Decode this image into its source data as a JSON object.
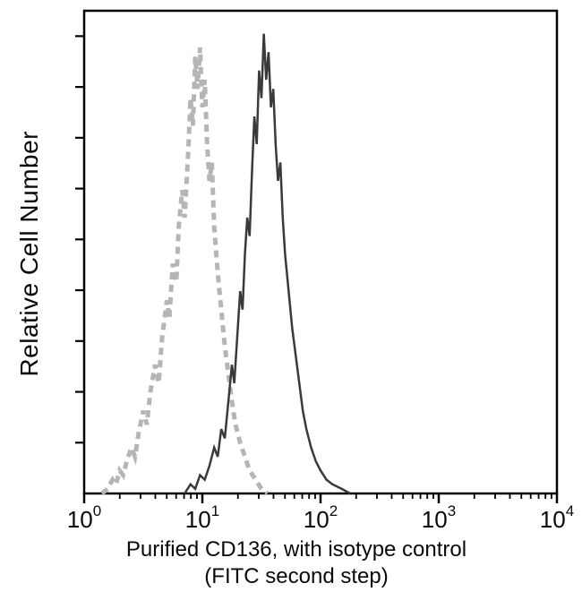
{
  "figure": {
    "y_axis_label": "Relative Cell Number",
    "caption_line1": "Purified CD136, with isotype control",
    "caption_line2": "(FITC second step)"
  },
  "chart_data": {
    "type": "line",
    "subtype": "flow-cytometry-histogram",
    "title": "",
    "xlabel": "Purified CD136, with isotype control (FITC second step)",
    "ylabel": "Relative Cell Number",
    "x_scale": "log10",
    "xlim_log10": [
      0,
      4
    ],
    "ylim": [
      0,
      105
    ],
    "grid": false,
    "legend": "none",
    "frame_color": "#000000",
    "x_ticks": [
      {
        "label": "10^0",
        "mantissa": "10",
        "exponent": "0",
        "log10": 0
      },
      {
        "label": "10^1",
        "mantissa": "10",
        "exponent": "1",
        "log10": 1
      },
      {
        "label": "10^2",
        "mantissa": "10",
        "exponent": "2",
        "log10": 2
      },
      {
        "label": "10^3",
        "mantissa": "10",
        "exponent": "3",
        "log10": 3
      },
      {
        "label": "10^4",
        "mantissa": "10",
        "exponent": "4",
        "log10": 4
      }
    ],
    "series": [
      {
        "name": "isotype control",
        "line_style": "dashed",
        "color": "#b5b5b5",
        "stroke_width": 5,
        "dash_pattern": "8 6",
        "points_log10x_y": [
          [
            0.15,
            0
          ],
          [
            0.2,
            1
          ],
          [
            0.24,
            3
          ],
          [
            0.27,
            2
          ],
          [
            0.3,
            5
          ],
          [
            0.33,
            4
          ],
          [
            0.36,
            7
          ],
          [
            0.4,
            10
          ],
          [
            0.43,
            8
          ],
          [
            0.46,
            13
          ],
          [
            0.5,
            18
          ],
          [
            0.53,
            15
          ],
          [
            0.56,
            22
          ],
          [
            0.6,
            28
          ],
          [
            0.63,
            24
          ],
          [
            0.66,
            34
          ],
          [
            0.7,
            42
          ],
          [
            0.72,
            38
          ],
          [
            0.75,
            50
          ],
          [
            0.78,
            46
          ],
          [
            0.8,
            58
          ],
          [
            0.83,
            66
          ],
          [
            0.85,
            60
          ],
          [
            0.88,
            74
          ],
          [
            0.9,
            86
          ],
          [
            0.92,
            80
          ],
          [
            0.94,
            95
          ],
          [
            0.96,
            88
          ],
          [
            0.98,
            97
          ],
          [
            1.0,
            84
          ],
          [
            1.02,
            90
          ],
          [
            1.04,
            76
          ],
          [
            1.06,
            68
          ],
          [
            1.08,
            72
          ],
          [
            1.1,
            58
          ],
          [
            1.13,
            48
          ],
          [
            1.16,
            40
          ],
          [
            1.19,
            32
          ],
          [
            1.22,
            26
          ],
          [
            1.25,
            20
          ],
          [
            1.28,
            15
          ],
          [
            1.32,
            11
          ],
          [
            1.36,
            8
          ],
          [
            1.4,
            5
          ],
          [
            1.45,
            3
          ],
          [
            1.5,
            1
          ],
          [
            1.55,
            0
          ]
        ]
      },
      {
        "name": "Purified CD136",
        "line_style": "solid",
        "color": "#3a3a3a",
        "stroke_width": 2.5,
        "dash_pattern": "",
        "points_log10x_y": [
          [
            0.85,
            0
          ],
          [
            0.9,
            2
          ],
          [
            0.94,
            1
          ],
          [
            0.98,
            4
          ],
          [
            1.02,
            3
          ],
          [
            1.06,
            6
          ],
          [
            1.1,
            10
          ],
          [
            1.13,
            8
          ],
          [
            1.16,
            14
          ],
          [
            1.19,
            12
          ],
          [
            1.22,
            20
          ],
          [
            1.25,
            28
          ],
          [
            1.27,
            24
          ],
          [
            1.3,
            36
          ],
          [
            1.32,
            44
          ],
          [
            1.34,
            40
          ],
          [
            1.36,
            52
          ],
          [
            1.38,
            60
          ],
          [
            1.4,
            56
          ],
          [
            1.42,
            70
          ],
          [
            1.44,
            82
          ],
          [
            1.46,
            76
          ],
          [
            1.48,
            92
          ],
          [
            1.5,
            86
          ],
          [
            1.52,
            100
          ],
          [
            1.54,
            90
          ],
          [
            1.56,
            96
          ],
          [
            1.58,
            84
          ],
          [
            1.6,
            88
          ],
          [
            1.62,
            76
          ],
          [
            1.64,
            68
          ],
          [
            1.66,
            72
          ],
          [
            1.68,
            60
          ],
          [
            1.7,
            52
          ],
          [
            1.73,
            44
          ],
          [
            1.76,
            36
          ],
          [
            1.79,
            30
          ],
          [
            1.82,
            24
          ],
          [
            1.85,
            18
          ],
          [
            1.88,
            14
          ],
          [
            1.92,
            10
          ],
          [
            1.96,
            7
          ],
          [
            2.0,
            5
          ],
          [
            2.05,
            3
          ],
          [
            2.1,
            2
          ],
          [
            2.18,
            1
          ],
          [
            2.25,
            0
          ]
        ]
      }
    ]
  }
}
